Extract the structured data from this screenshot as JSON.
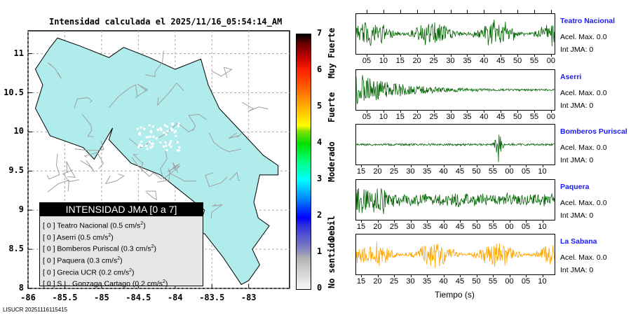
{
  "chart_data": {
    "type": "map",
    "title": "Intensidad calculada el 2025/11/16_05:54:14_AM",
    "x_ticks": [
      "-86",
      "-85.5",
      "-85",
      "-84.5",
      "-84",
      "-83.5",
      "-83"
    ],
    "x_values": [
      -86,
      -85.5,
      -85,
      -84.5,
      -84,
      -83.5,
      -83
    ],
    "y_ticks": [
      "11",
      "10.5",
      "10",
      "9.5",
      "9",
      "8.5",
      "8"
    ],
    "y_values": [
      11,
      10.5,
      10,
      9.5,
      9,
      8.5,
      8
    ],
    "xlim": [
      -86,
      -82.45
    ],
    "ylim": [
      8,
      11.3
    ],
    "colorbar": {
      "ticks": [
        "0",
        "1",
        "2",
        "3",
        "4",
        "5",
        "6",
        "7"
      ],
      "labels": [
        "No sentido",
        "Debil",
        "Moderado",
        "Fuerte",
        "Muy Fuerte"
      ]
    },
    "legend": {
      "title": "INTENSIDAD JMA [0 a 7]",
      "items": [
        {
          "int": "[ 0 ]",
          "name": "Teatro Nacional",
          "acc": "(0.5 cm/s",
          "unit": "2",
          ")": ")"
        },
        {
          "int": "[ 0 ]",
          "name": "Aserri",
          "acc": "(0.5 cm/s",
          "unit": "2"
        },
        {
          "int": "[ 0 ]",
          "name": "Bomberos Puriscal",
          "acc": "(0.3 cm/s",
          "unit": "2"
        },
        {
          "int": "[ 0 ]",
          "name": "Paquera",
          "acc": "(0.3 cm/s",
          "unit": "2"
        },
        {
          "int": "[ 0 ]",
          "name": "Grecia UCR",
          "acc": "(0.2 cm/s",
          "unit": "2"
        },
        {
          "int": "[ 0 ]",
          "name": "S.L. Gonzaga.Cartago",
          "acc": "(0.2 cm/s",
          "unit": "2"
        }
      ]
    },
    "traces": [
      {
        "name": "Teatro Nacional",
        "acel": "Acel. Max. 0.0",
        "int": "Int JMA: 0",
        "color": "#006400",
        "ticks": [
          "05",
          "10",
          "15",
          "20",
          "25",
          "30",
          "35",
          "40",
          "45",
          "50",
          "55",
          "00"
        ],
        "shape": "steady",
        "ticks_top": true
      },
      {
        "name": "Aserri",
        "acel": "Acel. Max. 0.0",
        "int": "Int JMA: 0",
        "color": "#006400",
        "ticks": [
          "05",
          "10",
          "15",
          "20",
          "25",
          "30",
          "35",
          "40",
          "45",
          "50",
          "55",
          "00"
        ],
        "shape": "decay"
      },
      {
        "name": "Bomberos Puriscal",
        "acel": "Acel. Max. 0.0",
        "int": "Int JMA: 0",
        "color": "#006400",
        "ticks": [
          "15",
          "20",
          "25",
          "30",
          "35",
          "40",
          "45",
          "50",
          "55",
          "00",
          "05",
          "10"
        ],
        "shape": "spike"
      },
      {
        "name": "Paquera",
        "acel": "Acel. Max. 0.0",
        "int": "Int JMA: 0",
        "color": "#006400",
        "ticks": [
          "15",
          "20",
          "25",
          "30",
          "35",
          "40",
          "45",
          "50",
          "55",
          "00",
          "05",
          "10"
        ],
        "shape": "early"
      },
      {
        "name": "La Sabana",
        "acel": "Acel. Max. 0.0",
        "int": "Int JMA: 0",
        "color": "#ffa500",
        "ticks": [
          "15",
          "20",
          "25",
          "30",
          "35",
          "40",
          "45",
          "50",
          "55",
          "00",
          "05",
          "10"
        ],
        "shape": "steady"
      }
    ],
    "xlabel": "Tiempo (s)"
  },
  "footer": "LISUCR 20251116115415"
}
